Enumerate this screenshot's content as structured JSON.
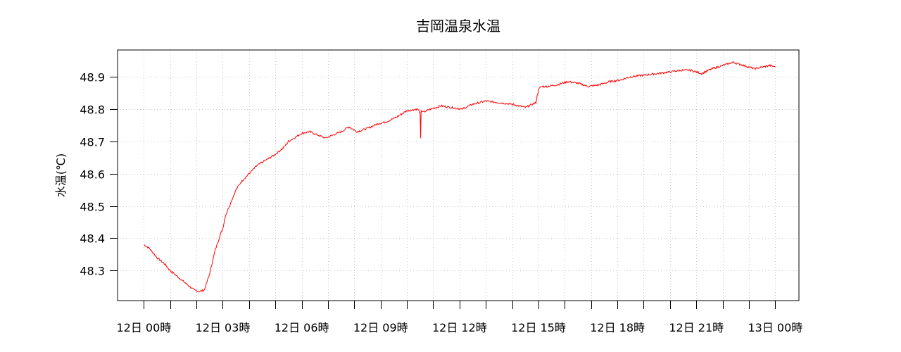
{
  "chart_data": {
    "type": "line",
    "title": "吉岡温泉水温",
    "ylabel": "水温(℃)",
    "xlabel": "",
    "xlim": [
      -1,
      24.9
    ],
    "ylim": [
      48.207,
      48.983
    ],
    "yticks": [
      48.3,
      48.4,
      48.5,
      48.6,
      48.7,
      48.8,
      48.9
    ],
    "xticks": [
      0,
      1,
      2,
      3,
      4,
      5,
      6,
      7,
      8,
      9,
      10,
      11,
      12,
      13,
      14,
      15,
      16,
      17,
      18,
      19,
      20,
      21,
      22,
      23,
      24
    ],
    "xtick_labels": [
      "12日 00時",
      "12日 03時",
      "12日 06時",
      "12日 09時",
      "12日 12時",
      "12日 15時",
      "12日 18時",
      "12日 21時",
      "13日 00時"
    ],
    "xtick_label_positions": [
      0,
      3,
      6,
      9,
      12,
      15,
      18,
      21,
      24
    ],
    "grid": true,
    "series": [
      {
        "color": "#ff0000",
        "x": [
          0,
          0.2,
          0.5,
          0.8,
          1.0,
          1.3,
          1.6,
          1.9,
          2.1,
          2.3,
          2.5,
          2.7,
          2.9,
          3.0,
          3.1,
          3.2,
          3.3,
          3.4,
          3.5,
          3.7,
          4.0,
          4.3,
          4.6,
          5.0,
          5.3,
          5.5,
          5.8,
          6.0,
          6.3,
          6.6,
          6.9,
          7.2,
          7.5,
          7.8,
          8.1,
          8.5,
          8.9,
          9.2,
          9.6,
          10.0,
          10.4,
          10.5,
          10.52,
          10.54,
          10.6,
          10.9,
          11.3,
          11.7,
          12.1,
          12.5,
          13.0,
          13.5,
          14.0,
          14.5,
          14.9,
          15.0,
          15.1,
          15.3,
          15.7,
          16.1,
          16.5,
          16.9,
          17.3,
          17.7,
          18.1,
          18.5,
          19.0,
          19.5,
          20.0,
          20.4,
          20.8,
          21.2,
          21.6,
          22.0,
          22.4,
          22.8,
          23.2,
          23.5,
          23.8,
          24.0
        ],
        "y": [
          48.38,
          48.37,
          48.34,
          48.32,
          48.3,
          48.28,
          48.26,
          48.24,
          48.235,
          48.24,
          48.29,
          48.36,
          48.41,
          48.43,
          48.47,
          48.49,
          48.51,
          48.53,
          48.55,
          48.575,
          48.6,
          48.625,
          48.64,
          48.66,
          48.68,
          48.7,
          48.715,
          48.725,
          48.73,
          48.72,
          48.71,
          48.72,
          48.73,
          48.745,
          48.73,
          48.74,
          48.755,
          48.76,
          48.775,
          48.795,
          48.8,
          48.79,
          48.71,
          48.795,
          48.79,
          48.8,
          48.81,
          48.805,
          48.8,
          48.815,
          48.825,
          48.82,
          48.815,
          48.805,
          48.82,
          48.86,
          48.87,
          48.87,
          48.875,
          48.885,
          48.88,
          48.87,
          48.875,
          48.885,
          48.89,
          48.9,
          48.905,
          48.91,
          48.915,
          48.92,
          48.92,
          48.91,
          48.925,
          48.935,
          48.945,
          48.935,
          48.925,
          48.93,
          48.935,
          48.93
        ]
      }
    ]
  }
}
